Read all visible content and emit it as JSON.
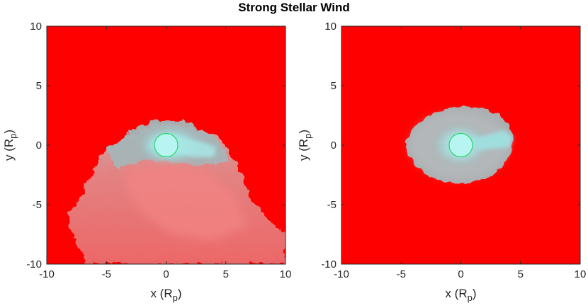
{
  "figure": {
    "title": "Strong Stellar Wind"
  },
  "chart_data": [
    {
      "type": "heatmap",
      "title": "",
      "xlabel": "x (R",
      "xlabel_sub": "p",
      "xlabel_close": ")",
      "ylabel": "y (R",
      "ylabel_sub": "p",
      "ylabel_close": ")",
      "xlim": [
        -10,
        10
      ],
      "ylim": [
        -10,
        10
      ],
      "xticks": [
        -10,
        -5,
        0,
        5,
        10
      ],
      "yticks": [
        -10,
        -5,
        0,
        5,
        10
      ],
      "grid": false,
      "background_color": "#ff0000",
      "envelope_color": "#a9b6b8",
      "core_color": "#a4ecec",
      "planet": {
        "center": [
          0,
          0
        ],
        "radius": 1.0,
        "fill": "#b8f5f2",
        "edge": "#22dd66"
      },
      "envelope_extent": {
        "x": [
          -8.5,
          10
        ],
        "y": [
          -10,
          2.3
        ]
      },
      "description_regions": [
        {
          "name": "gas-envelope",
          "shape": "bow",
          "apex_y": 2.3,
          "spreads_to_lower_right": true
        }
      ]
    },
    {
      "type": "heatmap",
      "title": "",
      "xlabel": "x (R",
      "xlabel_sub": "p",
      "xlabel_close": ")",
      "ylabel": "y (R",
      "ylabel_sub": "p",
      "ylabel_close": ")",
      "xlim": [
        -10,
        10
      ],
      "ylim": [
        -10,
        10
      ],
      "xticks": [
        -10,
        -5,
        0,
        5,
        10
      ],
      "yticks": [
        -10,
        -5,
        0,
        5,
        10
      ],
      "grid": false,
      "background_color": "#ff0000",
      "envelope_color": "#a9b6b8",
      "core_color": "#a4ecec",
      "planet": {
        "center": [
          0,
          0
        ],
        "radius": 1.0,
        "fill": "#b8f5f2",
        "edge": "#22dd66"
      },
      "envelope_extent": {
        "x": [
          -4.8,
          4.6
        ],
        "y": [
          -3.3,
          3.6
        ]
      },
      "description_regions": [
        {
          "name": "gas-envelope",
          "shape": "ellipse",
          "tail_direction": "+x"
        }
      ]
    }
  ]
}
